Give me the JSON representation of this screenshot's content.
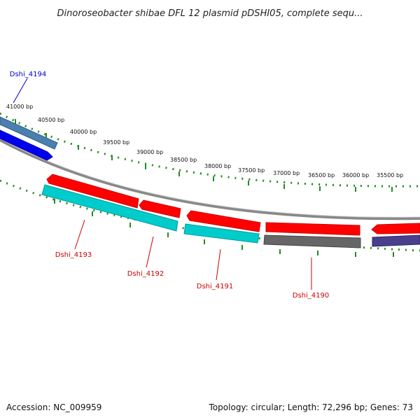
{
  "title": "Dinoroseobacter shibae DFL 12 plasmid pDSHI05, complete sequ...",
  "footer": {
    "accession": "Accession: NC_009959",
    "summary": "Topology: circular; Length: 72,296 bp; Genes: 73"
  },
  "ruler": {
    "labels": [
      "41000 bp",
      "40500 bp",
      "40000 bp",
      "39500 bp",
      "39000 bp",
      "38500 bp",
      "38000 bp",
      "37500 bp",
      "37000 bp",
      "36500 bp",
      "36000 bp",
      "35500 bp"
    ]
  },
  "gene_labels": [
    {
      "name": "Dshi_4194",
      "color": "#0000cc"
    },
    {
      "name": "Dshi_4193",
      "color": "#cc0000"
    },
    {
      "name": "Dshi_4192",
      "color": "#cc0000"
    },
    {
      "name": "Dshi_4191",
      "color": "#cc0000"
    },
    {
      "name": "Dshi_4190",
      "color": "#cc0000"
    }
  ],
  "colors": {
    "forward_gene": "#ff0000",
    "reverse_gene": "#00cccc",
    "blue_gene": "#0000ee",
    "steelblue_gene": "#4a7fb0",
    "gray_gene": "#666666",
    "purple_gene": "#4a3f8c",
    "backbone": "#888888",
    "tick_marks": "#228b22"
  }
}
